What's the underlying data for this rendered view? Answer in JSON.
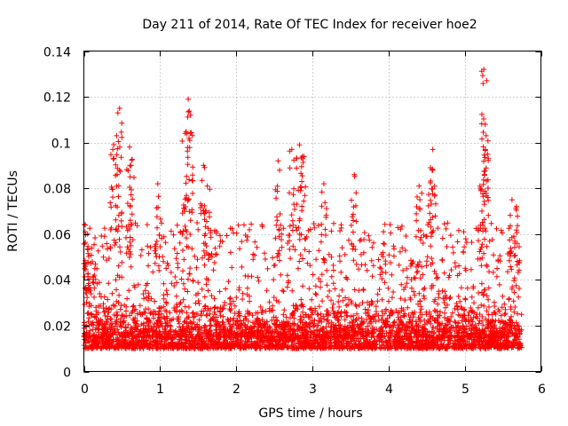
{
  "chart_data": {
    "type": "scatter",
    "title": "Day 211 of 2014, Rate Of TEC Index for receiver hoe2",
    "xlabel": "GPS time / hours",
    "ylabel": "ROTI / TECUs",
    "xlim": [
      0,
      6
    ],
    "ylim": [
      0,
      0.14
    ],
    "xticks": [
      0,
      1,
      2,
      3,
      4,
      5,
      6
    ],
    "yticks": [
      0,
      0.02,
      0.04,
      0.06,
      0.08,
      0.1,
      0.12,
      0.14
    ],
    "xtick_labels": [
      "0",
      "1",
      "2",
      "3",
      "4",
      "5",
      "6"
    ],
    "ytick_labels": [
      "0",
      "0.02",
      "0.04",
      "0.06",
      "0.08",
      "0.1",
      "0.12",
      "0.14"
    ],
    "grid": true,
    "marker": "+",
    "color": "#ff0000",
    "data_x_range": [
      0,
      5.75
    ],
    "series": [
      {
        "name": "ROTI",
        "baseline_band": [
          0.005,
          0.025
        ],
        "peaks": [
          {
            "x": 0.02,
            "y": 0.064
          },
          {
            "x": 0.05,
            "y": 0.06
          },
          {
            "x": 0.38,
            "y": 0.097
          },
          {
            "x": 0.43,
            "y": 0.103
          },
          {
            "x": 0.47,
            "y": 0.115
          },
          {
            "x": 0.6,
            "y": 0.098
          },
          {
            "x": 0.62,
            "y": 0.09
          },
          {
            "x": 0.97,
            "y": 0.082
          },
          {
            "x": 1.33,
            "y": 0.104
          },
          {
            "x": 1.37,
            "y": 0.119
          },
          {
            "x": 1.4,
            "y": 0.112
          },
          {
            "x": 1.57,
            "y": 0.09
          },
          {
            "x": 1.62,
            "y": 0.081
          },
          {
            "x": 2.55,
            "y": 0.092
          },
          {
            "x": 2.73,
            "y": 0.097
          },
          {
            "x": 2.83,
            "y": 0.099
          },
          {
            "x": 2.87,
            "y": 0.094
          },
          {
            "x": 3.15,
            "y": 0.082
          },
          {
            "x": 3.55,
            "y": 0.086
          },
          {
            "x": 4.4,
            "y": 0.081
          },
          {
            "x": 4.55,
            "y": 0.089
          },
          {
            "x": 4.58,
            "y": 0.097
          },
          {
            "x": 5.2,
            "y": 0.081
          },
          {
            "x": 5.25,
            "y": 0.132
          },
          {
            "x": 5.27,
            "y": 0.108
          },
          {
            "x": 5.28,
            "y": 0.103
          },
          {
            "x": 5.62,
            "y": 0.075
          },
          {
            "x": 5.68,
            "y": 0.072
          }
        ]
      }
    ]
  }
}
